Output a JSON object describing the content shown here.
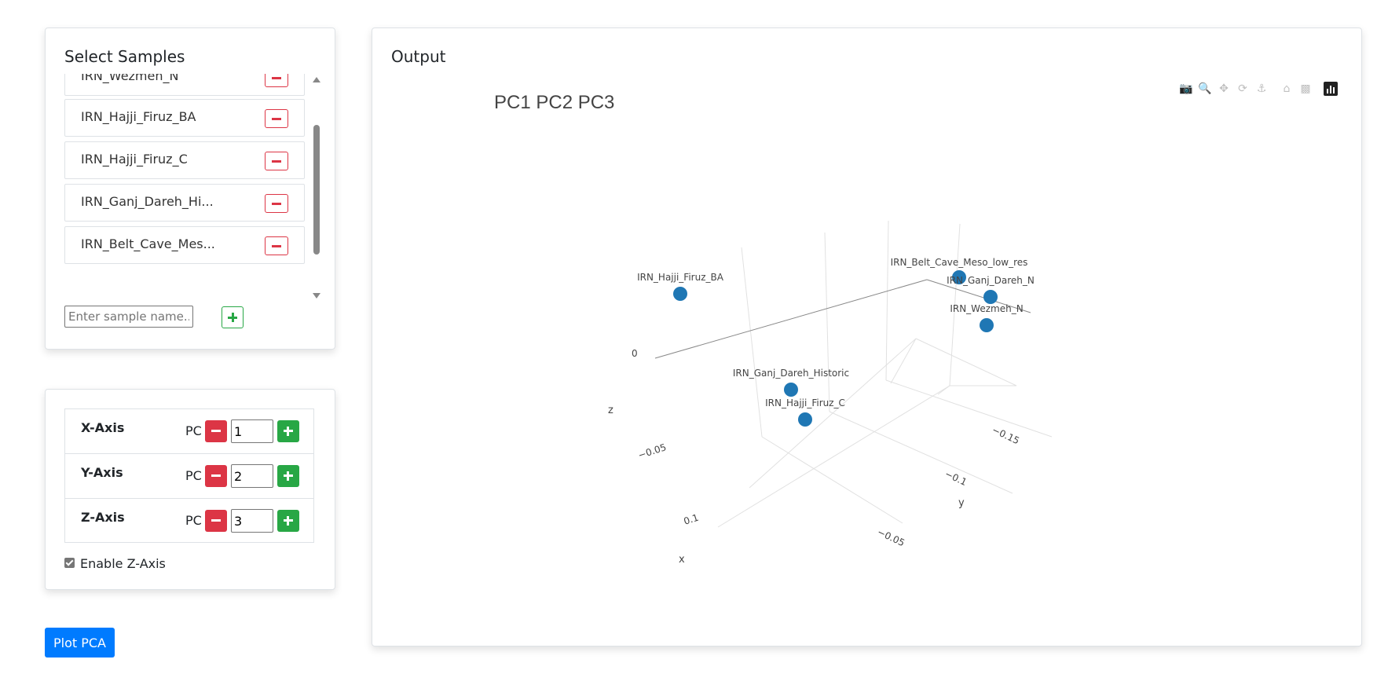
{
  "samples_panel": {
    "title": "Select Samples",
    "samples": [
      {
        "label": "IRN_Wezmeh_N"
      },
      {
        "label": "IRN_Hajji_Firuz_BA"
      },
      {
        "label": "IRN_Hajji_Firuz_C"
      },
      {
        "label": "IRN_Ganj_Dareh_Hi..."
      },
      {
        "label": "IRN_Belt_Cave_Mes..."
      }
    ],
    "input_placeholder": "Enter sample name..."
  },
  "axis_panel": {
    "rows": [
      {
        "label": "X-Axis",
        "prefix": "PC",
        "value": "1"
      },
      {
        "label": "Y-Axis",
        "prefix": "PC",
        "value": "2"
      },
      {
        "label": "Z-Axis",
        "prefix": "PC",
        "value": "3"
      }
    ],
    "enable_z_label": "Enable Z-Axis",
    "enable_z_checked": true
  },
  "plot_button_label": "Plot PCA",
  "output_panel": {
    "title": "Output",
    "modebar_icons": [
      "camera-icon",
      "zoom-icon",
      "pan-icon",
      "orbit-rotation-icon",
      "turntable-rotation-icon",
      "reset-camera-icon",
      "camera-view-icon",
      "plotly-logo-icon"
    ]
  },
  "chart_data": {
    "type": "scatter",
    "title": "PC1 PC2 PC3",
    "xlabel": "x",
    "ylabel": "y",
    "zlabel": "z",
    "x_ticks": [
      "0.1"
    ],
    "y_ticks": [
      "−0.05",
      "−0.1",
      "−0.15"
    ],
    "z_ticks": [
      "0",
      "−0.05"
    ],
    "marker_color": "#1f77b4",
    "points": [
      {
        "label": "IRN_Hajji_Firuz_BA"
      },
      {
        "label": "IRN_Belt_Cave_Meso_low_res"
      },
      {
        "label": "IRN_Ganj_Dareh_N"
      },
      {
        "label": "IRN_Wezmeh_N"
      },
      {
        "label": "IRN_Ganj_Dareh_Historic"
      },
      {
        "label": "IRN_Hajji_Firuz_C"
      }
    ]
  }
}
